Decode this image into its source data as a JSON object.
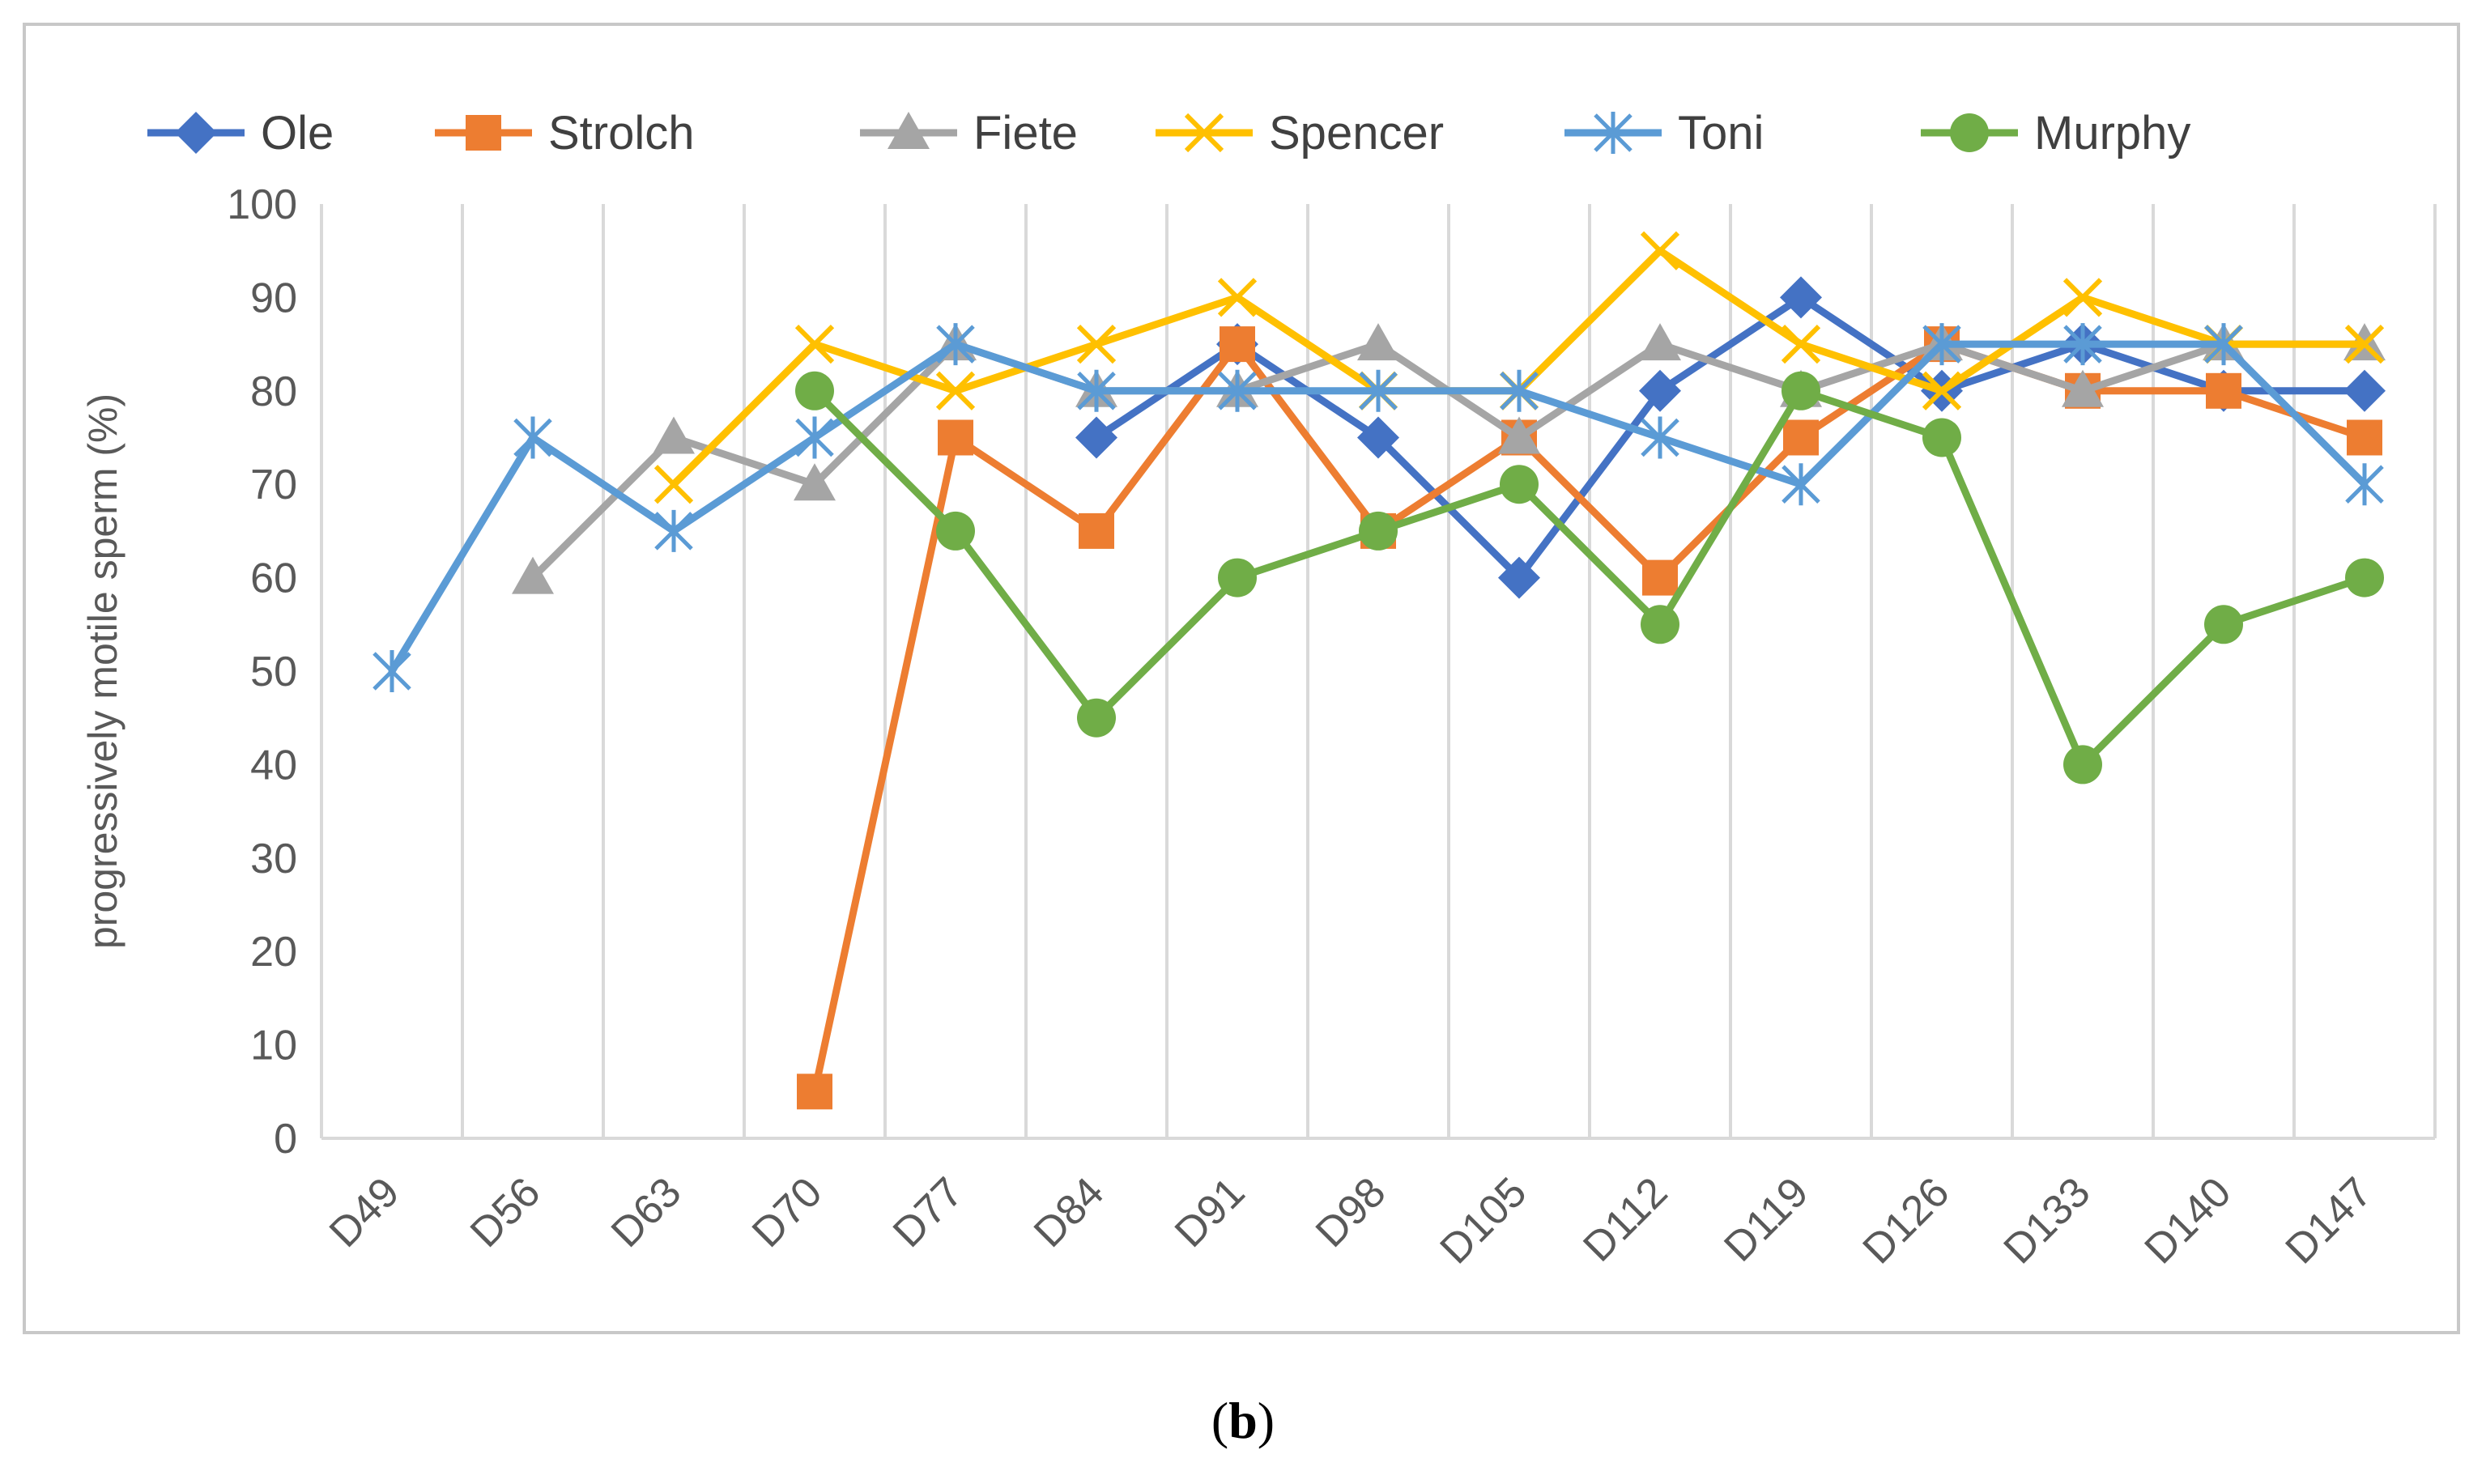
{
  "chart_data": {
    "type": "line",
    "title": "",
    "xlabel": "",
    "ylabel": "progressively motile sperm (%)",
    "ylim": [
      0,
      100
    ],
    "y_ticks": [
      "0",
      "10",
      "20",
      "30",
      "40",
      "50",
      "60",
      "70",
      "80",
      "90",
      "100"
    ],
    "grid": "vertical",
    "legend_position": "top",
    "categories": [
      "D49",
      "D56",
      "D63",
      "D70",
      "D77",
      "D84",
      "D91",
      "D98",
      "D105",
      "D112",
      "D119",
      "D126",
      "D133",
      "D140",
      "D147"
    ],
    "series": [
      {
        "name": "Ole",
        "color": "#4472c4",
        "marker": "diamond",
        "values": [
          null,
          null,
          null,
          null,
          null,
          75,
          85,
          75,
          60,
          80,
          90,
          80,
          85,
          80,
          80
        ]
      },
      {
        "name": "Strolch",
        "color": "#ed7d31",
        "marker": "square",
        "values": [
          null,
          null,
          null,
          5,
          75,
          65,
          85,
          65,
          75,
          60,
          75,
          85,
          80,
          80,
          75
        ]
      },
      {
        "name": "Fiete",
        "color": "#a5a5a5",
        "marker": "triangle",
        "values": [
          null,
          60,
          75,
          70,
          85,
          80,
          80,
          85,
          75,
          85,
          80,
          85,
          80,
          85,
          85
        ]
      },
      {
        "name": "Spencer",
        "color": "#ffc000",
        "marker": "x",
        "values": [
          null,
          null,
          70,
          85,
          80,
          85,
          90,
          80,
          80,
          95,
          85,
          80,
          90,
          85,
          85
        ]
      },
      {
        "name": "Toni",
        "color": "#5b9bd5",
        "marker": "star",
        "values": [
          50,
          75,
          65,
          75,
          85,
          80,
          80,
          80,
          80,
          75,
          70,
          85,
          85,
          85,
          70
        ]
      },
      {
        "name": "Murphy",
        "color": "#70ad47",
        "marker": "circle",
        "values": [
          null,
          null,
          null,
          80,
          65,
          45,
          60,
          65,
          70,
          55,
          80,
          75,
          40,
          55,
          60
        ]
      }
    ]
  },
  "caption": {
    "open": "(",
    "letter": "b",
    "close": ")"
  }
}
